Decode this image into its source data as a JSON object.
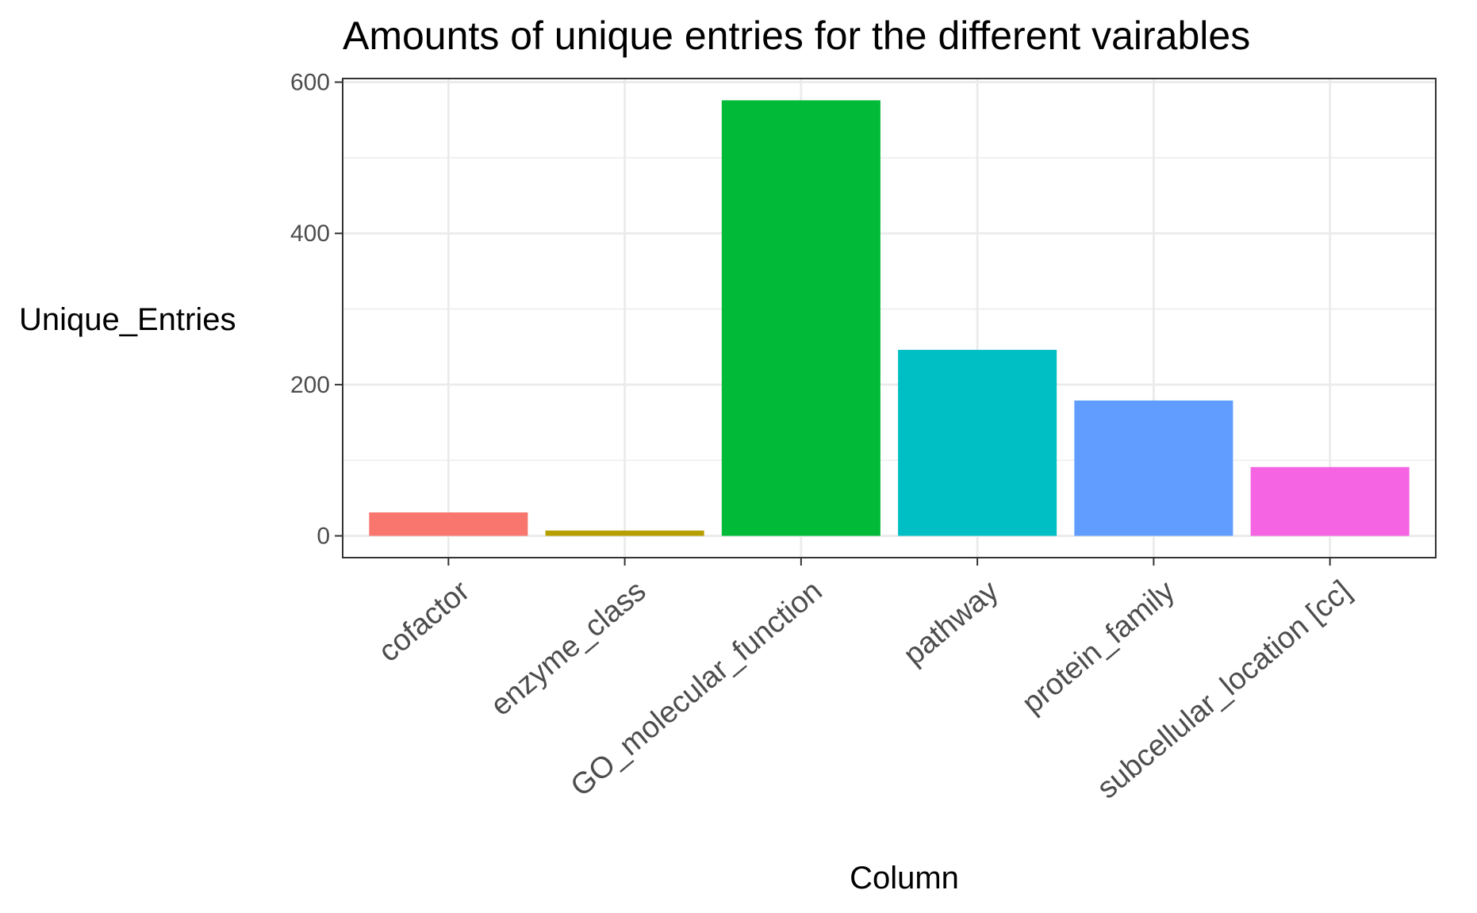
{
  "chart_data": {
    "type": "bar",
    "title": "Amounts of unique entries for the different vairables",
    "xlabel": "Column",
    "ylabel": "Unique_Entries",
    "categories": [
      "cofactor",
      "enzyme_class",
      "GO_molecular_function",
      "pathway",
      "protein_family",
      "subcellular_location [cc]"
    ],
    "values": [
      31,
      7,
      576,
      246,
      179,
      91
    ],
    "colors": [
      "#F8766D",
      "#B79F00",
      "#00BA38",
      "#00BFC4",
      "#619CFF",
      "#F564E3"
    ],
    "yticks": [
      0,
      200,
      400,
      600
    ],
    "ylim": [
      -28.8,
      604.8
    ],
    "grid": true,
    "legend": "none"
  }
}
